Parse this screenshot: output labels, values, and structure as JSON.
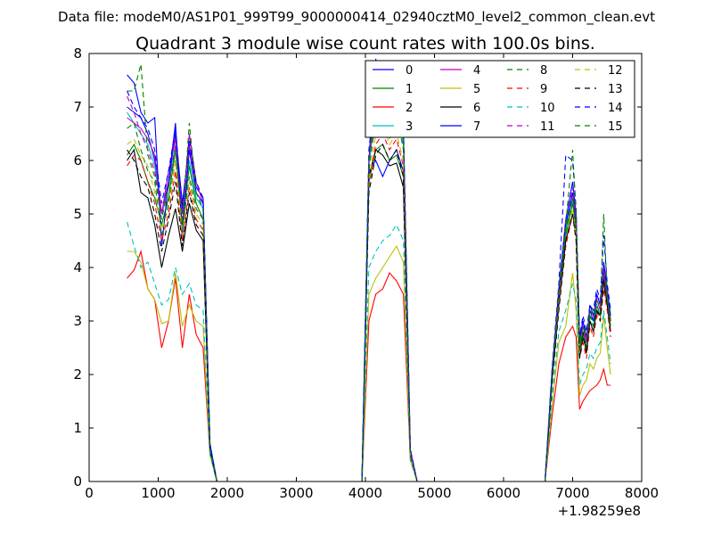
{
  "header": {
    "data_file": "Data file: modeM0/AS1P01_999T99_9000000414_02940cztM0_level2_common_clean.evt"
  },
  "chart_data": {
    "type": "line",
    "title": "Quadrant 3 module wise count rates with 100.0s bins.",
    "xlabel": "",
    "ylabel": "",
    "x_offset_label": "+1.98259e8",
    "xlim": [
      0,
      8000
    ],
    "ylim": [
      0,
      8
    ],
    "x_ticks": [
      0,
      1000,
      2000,
      3000,
      4000,
      5000,
      6000,
      7000,
      8000
    ],
    "y_ticks": [
      0,
      1,
      2,
      3,
      4,
      5,
      6,
      7,
      8
    ],
    "x_tick_labels": [
      "0",
      "1000",
      "2000",
      "3000",
      "4000",
      "5000",
      "6000",
      "7000",
      "8000"
    ],
    "y_tick_labels": [
      "0",
      "1",
      "2",
      "3",
      "4",
      "5",
      "6",
      "7",
      "8"
    ],
    "legend_position": "top-right",
    "segments": [
      {
        "x": [
          550,
          650,
          750,
          850,
          950,
          1050,
          1150,
          1250,
          1350,
          1450,
          1550,
          1650,
          1750,
          1850
        ],
        "active": true
      },
      {
        "x": [
          1850,
          2500,
          3000,
          3500,
          3950
        ],
        "active": false
      },
      {
        "x": [
          3950,
          4050,
          4150,
          4250,
          4350,
          4450,
          4550,
          4650,
          4750
        ],
        "active": true
      },
      {
        "x": [
          4750,
          5500,
          6000,
          6600
        ],
        "active": false
      },
      {
        "x": [
          6600,
          6700,
          6800,
          6900,
          7000,
          7050,
          7100,
          7150,
          7200,
          7250,
          7300,
          7350,
          7400,
          7450,
          7500,
          7550
        ],
        "active": true
      }
    ],
    "series": [
      {
        "name": "0",
        "color": "#0000ff",
        "dash": false,
        "values": [
          [
            7.0,
            6.9,
            6.8,
            6.5,
            6.0,
            5.0,
            5.6,
            6.5,
            5.2,
            6.3,
            5.5,
            5.3,
            0.7,
            0.0
          ],
          [
            0,
            0,
            0,
            0,
            0
          ],
          [
            0.0,
            6.0,
            7.9,
            7.2,
            6.8,
            7.3,
            6.5,
            0.5,
            0.0
          ],
          [
            0,
            0,
            0,
            0
          ],
          [
            0.0,
            2.0,
            3.6,
            4.9,
            5.6,
            5.0,
            2.7,
            3.0,
            2.6,
            3.3,
            3.1,
            3.5,
            3.3,
            4.1,
            3.6,
            3.0
          ]
        ]
      },
      {
        "name": "1",
        "color": "#008000",
        "dash": false,
        "values": [
          [
            6.1,
            6.3,
            6.0,
            5.6,
            5.3,
            4.8,
            5.3,
            6.2,
            4.8,
            5.9,
            5.2,
            4.9,
            0.6,
            0.0
          ],
          [
            0,
            0,
            0,
            0,
            0
          ],
          [
            0.0,
            5.6,
            6.2,
            6.3,
            6.0,
            6.1,
            5.7,
            0.5,
            0.0
          ],
          [
            0,
            0,
            0,
            0
          ],
          [
            0.0,
            1.9,
            3.4,
            4.6,
            5.2,
            4.7,
            2.5,
            2.8,
            2.5,
            3.1,
            3.0,
            3.3,
            3.1,
            3.8,
            3.4,
            2.9
          ]
        ]
      },
      {
        "name": "2",
        "color": "#ff0000",
        "dash": false,
        "values": [
          [
            3.8,
            3.95,
            4.3,
            3.6,
            3.4,
            2.5,
            3.0,
            3.8,
            2.5,
            3.5,
            2.75,
            2.5,
            0.5,
            0.0
          ],
          [
            0,
            0,
            0,
            0,
            0
          ],
          [
            0.0,
            3.0,
            3.5,
            3.6,
            3.9,
            3.75,
            3.5,
            0.4,
            0.0
          ],
          [
            0,
            0,
            0,
            0
          ],
          [
            0.0,
            1.2,
            2.2,
            2.7,
            2.9,
            2.7,
            1.35,
            1.5,
            1.6,
            1.7,
            1.75,
            1.8,
            1.9,
            2.1,
            1.8,
            1.8
          ]
        ]
      },
      {
        "name": "3",
        "color": "#00bfbf",
        "dash": false,
        "values": [
          [
            6.9,
            6.7,
            6.5,
            6.3,
            5.9,
            5.0,
            5.5,
            6.3,
            5.0,
            6.0,
            5.3,
            5.1,
            0.6,
            0.0
          ],
          [
            0,
            0,
            0,
            0,
            0
          ],
          [
            0.0,
            5.9,
            7.0,
            7.2,
            6.5,
            7.0,
            6.3,
            0.5,
            0.0
          ],
          [
            0,
            0,
            0,
            0
          ],
          [
            0.0,
            1.9,
            3.4,
            4.7,
            5.3,
            4.8,
            2.4,
            2.7,
            2.5,
            3.0,
            2.9,
            3.3,
            3.1,
            3.9,
            3.4,
            2.9
          ]
        ]
      },
      {
        "name": "4",
        "color": "#bf00bf",
        "dash": false,
        "values": [
          [
            6.8,
            6.7,
            6.6,
            6.4,
            6.1,
            5.0,
            5.8,
            6.4,
            5.0,
            6.5,
            5.6,
            5.2,
            0.6,
            0.0
          ],
          [
            0,
            0,
            0,
            0,
            0
          ],
          [
            0.0,
            6.0,
            7.0,
            7.3,
            7.0,
            7.1,
            6.6,
            0.6,
            0.0
          ],
          [
            0,
            0,
            0,
            0
          ],
          [
            0.0,
            2.0,
            3.5,
            4.8,
            5.4,
            4.9,
            2.6,
            2.9,
            2.6,
            3.2,
            3.1,
            3.4,
            3.2,
            4.0,
            3.5,
            3.0
          ]
        ]
      },
      {
        "name": "5",
        "color": "#bfbf00",
        "dash": false,
        "values": [
          [
            4.3,
            4.3,
            4.1,
            3.6,
            3.4,
            2.95,
            3.0,
            3.9,
            2.9,
            3.3,
            3.0,
            2.9,
            0.5,
            0.0
          ],
          [
            0,
            0,
            0,
            0,
            0
          ],
          [
            0.0,
            3.5,
            3.8,
            4.0,
            4.2,
            4.4,
            4.1,
            0.4,
            0.0
          ],
          [
            0,
            0,
            0,
            0
          ],
          [
            0.0,
            1.4,
            2.6,
            2.9,
            3.9,
            3.2,
            1.6,
            1.8,
            1.9,
            2.2,
            2.1,
            2.3,
            2.4,
            3.1,
            2.5,
            2.0
          ]
        ]
      },
      {
        "name": "6",
        "color": "#000000",
        "dash": false,
        "values": [
          [
            6.0,
            6.2,
            5.4,
            5.3,
            4.8,
            4.0,
            4.6,
            5.1,
            4.3,
            5.2,
            4.7,
            4.5,
            0.6,
            0.0
          ],
          [
            0,
            0,
            0,
            0,
            0
          ],
          [
            0.0,
            5.7,
            6.2,
            6.1,
            5.9,
            5.95,
            5.5,
            0.5,
            0.0
          ],
          [
            0,
            0,
            0,
            0
          ],
          [
            0.0,
            1.9,
            3.3,
            4.5,
            5.0,
            4.6,
            2.3,
            2.8,
            2.4,
            3.0,
            2.8,
            3.2,
            3.1,
            3.8,
            3.3,
            2.8
          ]
        ]
      },
      {
        "name": "7",
        "color": "#0000ff",
        "dash": false,
        "values": [
          [
            7.6,
            7.45,
            6.9,
            6.7,
            6.8,
            4.4,
            5.6,
            6.7,
            4.6,
            6.2,
            5.4,
            5.2,
            0.7,
            0.0
          ],
          [
            0,
            0,
            0,
            0,
            0
          ],
          [
            0.0,
            5.8,
            6.0,
            5.7,
            6.0,
            6.2,
            5.8,
            0.5,
            0.0
          ],
          [
            0,
            0,
            0,
            0
          ],
          [
            0.0,
            2.0,
            3.5,
            4.8,
            5.4,
            4.8,
            2.6,
            3.0,
            2.7,
            3.2,
            3.0,
            3.5,
            3.3,
            4.0,
            3.6,
            3.1
          ]
        ]
      },
      {
        "name": "8",
        "color": "#008000",
        "dash": true,
        "values": [
          [
            6.6,
            6.7,
            6.2,
            5.8,
            5.6,
            4.6,
            5.2,
            6.0,
            4.7,
            5.7,
            5.1,
            4.9,
            0.6,
            0.0
          ],
          [
            0,
            0,
            0,
            0,
            0
          ],
          [
            0.0,
            5.8,
            6.8,
            6.9,
            6.4,
            6.9,
            6.2,
            0.5,
            0.0
          ],
          [
            0,
            0,
            0,
            0
          ],
          [
            0.0,
            1.9,
            3.4,
            4.7,
            5.3,
            4.7,
            2.5,
            2.8,
            2.5,
            3.1,
            2.9,
            3.3,
            3.1,
            3.9,
            3.4,
            2.9
          ]
        ]
      },
      {
        "name": "9",
        "color": "#ff0000",
        "dash": true,
        "values": [
          [
            5.9,
            6.1,
            6.0,
            5.6,
            5.2,
            4.5,
            5.0,
            5.8,
            4.5,
            5.5,
            4.9,
            4.7,
            0.6,
            0.0
          ],
          [
            0,
            0,
            0,
            0,
            0
          ],
          [
            0.0,
            5.5,
            6.3,
            6.5,
            6.2,
            6.4,
            5.9,
            0.5,
            0.0
          ],
          [
            0,
            0,
            0,
            0
          ],
          [
            0.0,
            1.8,
            3.2,
            4.4,
            5.0,
            4.5,
            2.3,
            2.6,
            2.3,
            2.9,
            2.7,
            3.1,
            3.0,
            3.6,
            3.2,
            2.7
          ]
        ]
      },
      {
        "name": "10",
        "color": "#00bfbf",
        "dash": true,
        "values": [
          [
            4.85,
            4.4,
            4.0,
            4.1,
            3.7,
            3.3,
            3.4,
            4.0,
            3.5,
            3.7,
            3.3,
            3.2,
            0.5,
            0.0
          ],
          [
            0,
            0,
            0,
            0,
            0
          ],
          [
            0.0,
            4.0,
            4.3,
            4.5,
            4.6,
            4.8,
            4.5,
            0.4,
            0.0
          ],
          [
            0,
            0,
            0,
            0
          ],
          [
            0.0,
            1.5,
            2.8,
            3.2,
            3.7,
            3.4,
            1.8,
            2.0,
            2.1,
            2.4,
            2.3,
            2.5,
            2.6,
            3.2,
            2.7,
            2.2
          ]
        ]
      },
      {
        "name": "11",
        "color": "#bf00bf",
        "dash": true,
        "values": [
          [
            7.2,
            6.9,
            6.5,
            6.2,
            5.8,
            5.0,
            5.5,
            6.3,
            4.9,
            6.3,
            5.4,
            5.1,
            0.6,
            0.0
          ],
          [
            0,
            0,
            0,
            0,
            0
          ],
          [
            0.0,
            6.1,
            7.2,
            7.4,
            7.0,
            7.2,
            6.6,
            0.6,
            0.0
          ],
          [
            0,
            0,
            0,
            0
          ],
          [
            0.0,
            2.0,
            3.5,
            4.9,
            5.5,
            4.9,
            2.6,
            2.9,
            2.6,
            3.2,
            3.1,
            3.4,
            3.2,
            4.0,
            3.5,
            3.0
          ]
        ]
      },
      {
        "name": "12",
        "color": "#bfbf00",
        "dash": true,
        "values": [
          [
            6.3,
            6.4,
            6.1,
            5.9,
            5.4,
            4.7,
            5.1,
            6.0,
            4.6,
            5.6,
            5.0,
            4.8,
            0.6,
            0.0
          ],
          [
            0,
            0,
            0,
            0,
            0
          ],
          [
            0.0,
            5.6,
            6.5,
            6.7,
            6.3,
            6.5,
            6.0,
            0.5,
            0.0
          ],
          [
            0,
            0,
            0,
            0
          ],
          [
            0.0,
            1.8,
            3.3,
            4.5,
            5.1,
            4.6,
            2.4,
            2.7,
            2.4,
            3.0,
            2.8,
            3.2,
            3.0,
            3.7,
            3.3,
            2.8
          ]
        ]
      },
      {
        "name": "13",
        "color": "#000000",
        "dash": true,
        "values": [
          [
            6.2,
            6.0,
            5.7,
            5.5,
            5.0,
            4.3,
            4.9,
            5.6,
            4.4,
            5.4,
            4.8,
            4.6,
            0.6,
            0.0
          ],
          [
            0,
            0,
            0,
            0,
            0
          ],
          [
            0.0,
            5.4,
            6.1,
            6.3,
            6.0,
            6.2,
            5.7,
            0.5,
            0.0
          ],
          [
            0,
            0,
            0,
            0
          ],
          [
            0.0,
            1.8,
            3.2,
            4.5,
            5.0,
            4.5,
            2.3,
            2.7,
            2.4,
            3.0,
            2.8,
            3.2,
            3.0,
            3.7,
            3.3,
            2.8
          ]
        ]
      },
      {
        "name": "14",
        "color": "#0000ff",
        "dash": true,
        "values": [
          [
            7.3,
            7.0,
            6.8,
            6.6,
            6.2,
            5.2,
            5.8,
            6.6,
            5.1,
            6.4,
            5.6,
            5.3,
            0.7,
            0.0
          ],
          [
            0,
            0,
            0,
            0,
            0
          ],
          [
            0.0,
            6.2,
            7.4,
            7.6,
            7.1,
            7.4,
            6.7,
            0.6,
            0.0
          ],
          [
            0,
            0,
            0,
            0
          ],
          [
            0.0,
            2.1,
            3.7,
            6.1,
            6.0,
            5.1,
            2.7,
            3.1,
            2.8,
            3.3,
            3.2,
            3.6,
            3.4,
            4.6,
            3.7,
            3.2
          ]
        ]
      },
      {
        "name": "15",
        "color": "#008000",
        "dash": true,
        "values": [
          [
            7.3,
            7.3,
            7.8,
            6.1,
            5.7,
            4.9,
            5.5,
            6.2,
            4.8,
            6.7,
            5.4,
            5.1,
            0.6,
            0.0
          ],
          [
            0,
            0,
            0,
            0,
            0
          ],
          [
            0.0,
            6.0,
            7.1,
            7.2,
            6.8,
            7.1,
            6.5,
            0.5,
            0.0
          ],
          [
            0,
            0,
            0,
            0
          ],
          [
            0.0,
            2.0,
            3.6,
            4.8,
            6.2,
            5.0,
            2.6,
            2.9,
            2.7,
            3.2,
            3.1,
            3.4,
            3.3,
            5.0,
            3.5,
            3.0
          ]
        ]
      }
    ]
  }
}
